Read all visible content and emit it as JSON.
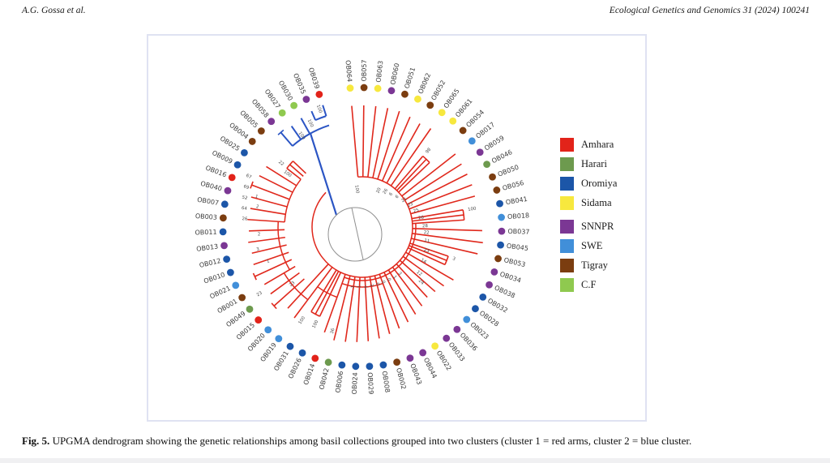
{
  "page": {
    "header_left": "A.G. Gossa et al.",
    "header_right": "Ecological Genetics and Genomics 31 (2024) 100241",
    "caption": {
      "label": "Fig. 5.",
      "text": " UPGMA dendrogram showing the genetic relationships among basil collections grouped into two clusters (cluster 1 = red arms, cluster 2 = blue cluster."
    }
  },
  "legend": {
    "items": [
      {
        "label": "Amhara",
        "color": "#e2231a"
      },
      {
        "label": "Harari",
        "color": "#6d9a4e"
      },
      {
        "label": "Oromiya",
        "color": "#1c56a8"
      },
      {
        "label": "Sidama",
        "color": "#f7e83e"
      },
      {
        "label": "SNNPR",
        "color": "#7b3794"
      },
      {
        "label": "SWE",
        "color": "#418fd9"
      },
      {
        "label": "Tigray",
        "color": "#7b3d10"
      },
      {
        "label": "C.F",
        "color": "#8fc94f"
      }
    ]
  },
  "chart_data": {
    "type": "radial-dendrogram",
    "title": "UPGMA dendrogram of basil collections",
    "clusters": [
      {
        "id": 1,
        "color": "#e0281c",
        "desc": "red arms"
      },
      {
        "id": 2,
        "color": "#2b55c4",
        "desc": "blue cluster"
      }
    ],
    "center_bootstrap": "100",
    "tips": [
      {
        "id": "OB064",
        "region": "Sidama",
        "len": 150
      },
      {
        "id": "OB057",
        "region": "Tigray",
        "len": 150
      },
      {
        "id": "OB063",
        "region": "Sidama",
        "len": 150
      },
      {
        "id": "OB060",
        "region": "SNNPR",
        "len": 150
      },
      {
        "id": "OB051",
        "region": "Tigray",
        "len": 150
      },
      {
        "id": "OB062",
        "region": "Sidama",
        "len": 148
      },
      {
        "id": "OB052",
        "region": "Tigray",
        "len": 146
      },
      {
        "id": "OB065",
        "region": "Sidama",
        "len": 148
      },
      {
        "id": "OB061",
        "region": "Sidama",
        "len": 115
      },
      {
        "id": "OB054",
        "region": "Tigray",
        "len": 115
      },
      {
        "id": "OB017",
        "region": "SWE",
        "len": 146
      },
      {
        "id": "OB059",
        "region": "SNNPR",
        "len": 145
      },
      {
        "id": "OB046",
        "region": "Harari",
        "len": 145
      },
      {
        "id": "OB050",
        "region": "Tigray",
        "len": 145
      },
      {
        "id": "OB056",
        "region": "Tigray",
        "len": 144
      },
      {
        "id": "OB041",
        "region": "Oromiya",
        "len": 126
      },
      {
        "id": "OB018",
        "region": "SWE",
        "len": 126
      },
      {
        "id": "OB037",
        "region": "SNNPR",
        "len": 148
      },
      {
        "id": "OB045",
        "region": "Oromiya",
        "len": 150
      },
      {
        "id": "OB053",
        "region": "Tigray",
        "len": 146
      },
      {
        "id": "OB034",
        "region": "SNNPR",
        "len": 112
      },
      {
        "id": "OB038",
        "region": "SNNPR",
        "len": 112
      },
      {
        "id": "OB032",
        "region": "Oromiya",
        "len": 130
      },
      {
        "id": "OB028",
        "region": "Oromiya",
        "len": 124
      },
      {
        "id": "OB023",
        "region": "SWE",
        "len": 120
      },
      {
        "id": "OB036",
        "region": "SNNPR",
        "len": 118
      },
      {
        "id": "OB033",
        "region": "SNNPR",
        "len": 122
      },
      {
        "id": "OB022",
        "region": "Sidama",
        "len": 126
      },
      {
        "id": "OB044",
        "region": "SNNPR",
        "len": 130
      },
      {
        "id": "OB043",
        "region": "SNNPR",
        "len": 133
      },
      {
        "id": "OB002",
        "region": "Tigray",
        "len": 136
      },
      {
        "id": "OB008",
        "region": "Oromiya",
        "len": 139
      },
      {
        "id": "OB029",
        "region": "Oromiya",
        "len": 141
      },
      {
        "id": "OB024",
        "region": "Oromiya",
        "len": 142
      },
      {
        "id": "OB006",
        "region": "Oromiya",
        "len": 143
      },
      {
        "id": "OB042",
        "region": "Harari",
        "len": 144
      },
      {
        "id": "OB014",
        "region": "Amhara",
        "len": 138
      },
      {
        "id": "OB026",
        "region": "Oromiya",
        "len": 122
      },
      {
        "id": "OB031",
        "region": "Oromiya",
        "len": 122
      },
      {
        "id": "OB019",
        "region": "SWE",
        "len": 140
      },
      {
        "id": "OB020",
        "region": "SWE",
        "len": 136
      },
      {
        "id": "OB015",
        "region": "Amhara",
        "len": 146,
        "cap": true,
        "r0": 96
      },
      {
        "id": "OB049",
        "region": "Harari",
        "len": 140,
        "r0": 96
      },
      {
        "id": "OB001",
        "region": "Tigray",
        "len": 140,
        "r0": 96
      },
      {
        "id": "OB021",
        "region": "SWE",
        "len": 146,
        "cap": true,
        "r0": 96
      },
      {
        "id": "OB010",
        "region": "Oromiya",
        "len": 142,
        "r0": 96
      },
      {
        "id": "OB012",
        "region": "Oromiya",
        "len": 140,
        "r0": 96
      },
      {
        "id": "OB013",
        "region": "SNNPR",
        "len": 142,
        "r0": 96
      },
      {
        "id": "OB011",
        "region": "Oromiya",
        "len": 140,
        "r0": 96
      },
      {
        "id": "OB003",
        "region": "Tigray",
        "len": 142,
        "r0": 96
      },
      {
        "id": "OB007",
        "region": "Oromiya",
        "len": 140,
        "r0": 96
      },
      {
        "id": "OB040",
        "region": "SNNPR",
        "len": 142,
        "r0": 96
      },
      {
        "id": "OB016",
        "region": "Amhara",
        "len": 146,
        "cap": true,
        "r0": 96
      },
      {
        "id": "OB009",
        "region": "Oromiya",
        "len": 142,
        "r0": 96
      },
      {
        "id": "OB025",
        "region": "Oromiya",
        "len": 140,
        "r0": 96
      },
      {
        "id": "OB004",
        "region": "Tigray",
        "len": 118,
        "r0": 96
      },
      {
        "id": "OB005",
        "region": "Tigray",
        "len": 118,
        "r0": 96
      },
      {
        "id": "OB058",
        "region": "SNNPR",
        "len": 154,
        "cluster": 2,
        "cap": true
      },
      {
        "id": "OB027",
        "region": "C.F",
        "len": 152,
        "cluster": 2
      },
      {
        "id": "OB030",
        "region": "C.F",
        "len": 154,
        "cluster": 2
      },
      {
        "id": "OB035",
        "region": "SNNPR",
        "len": 156,
        "cluster": 2,
        "r0": 144
      },
      {
        "id": "OB039",
        "region": "Amhara",
        "len": 158,
        "cluster": 2,
        "r0": 144
      }
    ],
    "joins": [
      {
        "tips": [
          "OB061",
          "OB054"
        ],
        "r": 115,
        "boot": "98"
      },
      {
        "tips": [
          "OB041",
          "OB018"
        ],
        "r": 126,
        "boot": "100"
      },
      {
        "tips": [
          "OB034",
          "OB038"
        ],
        "r": 112,
        "boot": "3"
      },
      {
        "tips": [
          "OB026",
          "OB031"
        ],
        "r": 122,
        "boot": "100",
        "r0": 62
      },
      {
        "tips": [
          "OB004",
          "OB005"
        ],
        "r": 118,
        "boot": "22",
        "r0": 96
      }
    ],
    "spine_arcs": [
      {
        "a1": -5,
        "a2": 313.5,
        "r": 62
      },
      {
        "a1": 86,
        "a2": 199.7,
        "r": 66
      },
      {
        "a1": 160,
        "a2": 199.7,
        "r": 74
      },
      {
        "a1": 199.7,
        "a2": 216.8,
        "r": 92
      },
      {
        "a1": 216.8,
        "a2": 239.6,
        "r": 112
      },
      {
        "a1": 239.6,
        "a2": 273.7,
        "r": 104
      },
      {
        "a1": 273.7,
        "a2": 307.8,
        "r": 96
      }
    ],
    "blue_cluster": {
      "node_arc": {
        "a1": 319.2,
        "a2": 341.9,
        "r": 132
      },
      "pair_arc": {
        "a1": 336.3,
        "a2": 341.9,
        "r": 144
      },
      "stem": {
        "a_outer": 331,
        "r_outer": 132
      },
      "bootstraps": [
        {
          "v": "100",
          "a": 340,
          "r": 150
        },
        {
          "v": "100",
          "a": 333.5,
          "r": 138
        },
        {
          "v": "100",
          "a": 326.5,
          "r": 130
        }
      ]
    },
    "bootstraps": [
      {
        "v": "100",
        "a": 352,
        "r": 42
      },
      {
        "v": "20",
        "a": 24,
        "r": 46
      },
      {
        "v": "26",
        "a": 33,
        "r": 49
      },
      {
        "v": "6",
        "a": 41,
        "r": 52
      },
      {
        "v": "6",
        "a": 49,
        "r": 55
      },
      {
        "v": "21",
        "a": 57,
        "r": 58
      },
      {
        "v": "23",
        "a": 65,
        "r": 62
      },
      {
        "v": "25",
        "a": 73,
        "r": 66
      },
      {
        "v": "26",
        "a": 81,
        "r": 70
      },
      {
        "v": "28",
        "a": 89,
        "r": 74
      },
      {
        "v": "22",
        "a": 95,
        "r": 76
      },
      {
        "v": "11",
        "a": 102,
        "r": 78
      },
      {
        "v": "23",
        "a": 110,
        "r": 81
      },
      {
        "v": "14",
        "a": 119,
        "r": 83
      },
      {
        "v": "12",
        "a": 129,
        "r": 87
      },
      {
        "v": "24",
        "a": 133,
        "r": 96
      },
      {
        "v": "3",
        "a": 141,
        "r": 72
      },
      {
        "v": "1",
        "a": 147,
        "r": 72
      },
      {
        "v": "0",
        "a": 153,
        "r": 71
      },
      {
        "v": "0",
        "a": 159,
        "r": 71
      },
      {
        "v": "0",
        "a": 165,
        "r": 71
      },
      {
        "v": "3",
        "a": 171,
        "r": 71
      },
      {
        "v": "4",
        "a": 177,
        "r": 72
      },
      {
        "v": "1",
        "a": 183,
        "r": 72
      },
      {
        "v": "1",
        "a": 189,
        "r": 73
      },
      {
        "v": "36",
        "a": 196,
        "r": 130
      },
      {
        "v": "100",
        "a": 213,
        "r": 132
      },
      {
        "v": "23",
        "a": 231,
        "r": 108
      },
      {
        "v": "23",
        "a": 237,
        "r": 148
      },
      {
        "v": "1",
        "a": 250,
        "r": 122
      },
      {
        "v": "3",
        "a": 258,
        "r": 130
      },
      {
        "v": "2",
        "a": 266,
        "r": 126
      },
      {
        "v": "2",
        "a": 281,
        "r": 130
      },
      {
        "v": "1",
        "a": 286,
        "r": 134
      },
      {
        "v": "26",
        "a": 274,
        "r": 142
      },
      {
        "v": "64",
        "a": 279,
        "r": 144
      },
      {
        "v": "52",
        "a": 284,
        "r": 146
      },
      {
        "v": "69",
        "a": 289,
        "r": 148
      },
      {
        "v": "67",
        "a": 294,
        "r": 150
      },
      {
        "v": "100",
        "a": 305.5,
        "r": 108
      }
    ]
  }
}
